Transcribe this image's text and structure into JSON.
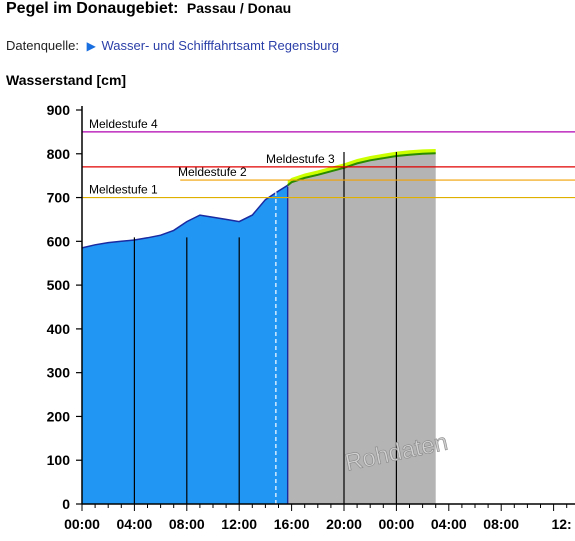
{
  "header": {
    "title": "Pegel im Donaugebiet:",
    "station": "Passau / Donau",
    "source_label": "Datenquelle:",
    "source_link": "Wasser- und Schifffahrtsamt Regensburg"
  },
  "chart_data": {
    "type": "area",
    "ylabel": "Wasserstand [cm]",
    "ylim": [
      0,
      900
    ],
    "yticks": [
      0,
      100,
      200,
      300,
      400,
      500,
      600,
      700,
      800,
      900
    ],
    "xlim": [
      0,
      54
    ],
    "xticks": [
      {
        "t": 0,
        "label": "00:00"
      },
      {
        "t": 4,
        "label": "04:00"
      },
      {
        "t": 8,
        "label": "08:00"
      },
      {
        "t": 12,
        "label": "12:00"
      },
      {
        "t": 16,
        "label": "16:00"
      },
      {
        "t": 20,
        "label": "20:00"
      },
      {
        "t": 24,
        "label": "00:00"
      },
      {
        "t": 28,
        "label": "04:00"
      },
      {
        "t": 32,
        "label": "08:00"
      },
      {
        "t": 36,
        "label": "12:"
      }
    ],
    "day_lines": [
      4,
      8,
      12,
      20,
      24
    ],
    "now_line": 14.8,
    "measured": [
      [
        0,
        585
      ],
      [
        1,
        592
      ],
      [
        2,
        597
      ],
      [
        3,
        600
      ],
      [
        4,
        603
      ],
      [
        5,
        608
      ],
      [
        6,
        614
      ],
      [
        7,
        625
      ],
      [
        8,
        645
      ],
      [
        9,
        660
      ],
      [
        10,
        655
      ],
      [
        11,
        650
      ],
      [
        12,
        645
      ],
      [
        13,
        660
      ],
      [
        14,
        695
      ],
      [
        15,
        715
      ],
      [
        15.7,
        728
      ]
    ],
    "raw_label": "Rohdaten",
    "raw": [
      [
        15.7,
        728
      ],
      [
        16,
        735
      ],
      [
        17,
        745
      ],
      [
        18,
        752
      ],
      [
        19,
        760
      ],
      [
        20,
        768
      ],
      [
        21,
        778
      ],
      [
        22,
        785
      ],
      [
        23,
        790
      ],
      [
        24,
        795
      ],
      [
        25,
        798
      ],
      [
        26,
        800
      ],
      [
        27,
        801
      ]
    ],
    "forecast_band_height": 10,
    "thresholds": [
      {
        "name": "Meldestufe 1",
        "value": 700,
        "color": "#e0b000",
        "x_start": 0
      },
      {
        "name": "Meldestufe 2",
        "value": 740,
        "color": "#f0a000",
        "x_start": 7.5
      },
      {
        "name": "Meldestufe 3",
        "value": 770,
        "color": "#e00000",
        "x_start": 0
      },
      {
        "name": "Meldestufe 4",
        "value": 850,
        "color": "#b000b0",
        "x_start": 0
      }
    ],
    "colors": {
      "measured": "#2196f3",
      "measured_edge": "#1a2aa0",
      "raw": "#b4b4b4",
      "forecast": "#ccff00",
      "forecast_edge": "#2a8a00"
    }
  }
}
